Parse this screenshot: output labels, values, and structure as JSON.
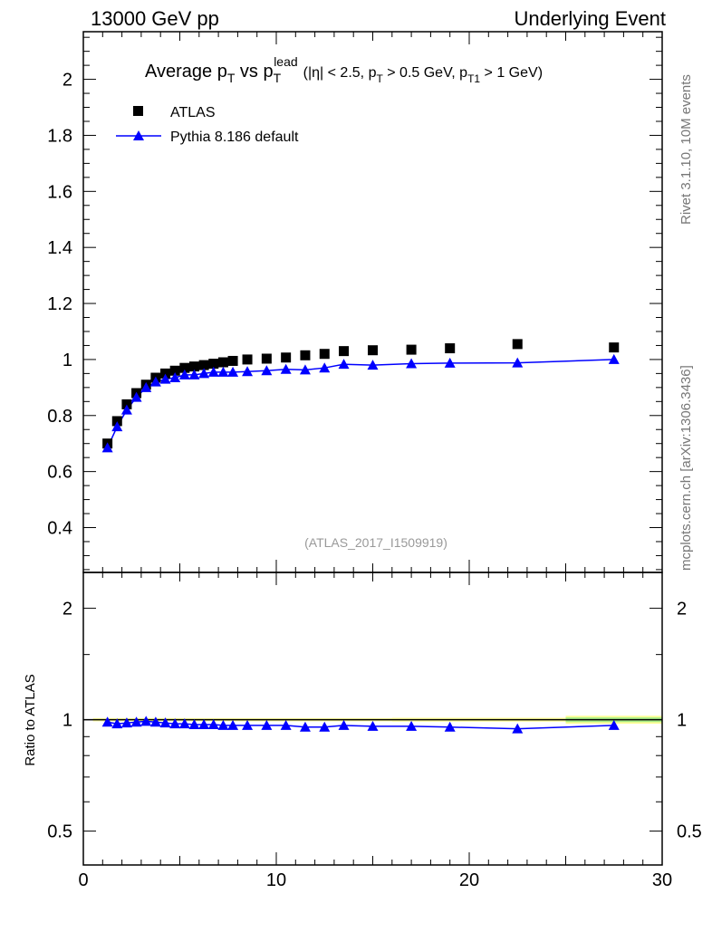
{
  "header": {
    "left": "13000 GeV pp",
    "right": "Underlying Event"
  },
  "side_labels": {
    "rivet": "Rivet 3.1.10,  10M events",
    "mcplots": "mcplots.cern.ch [arXiv:1306.3436]"
  },
  "title": {
    "p1": "Average p",
    "s1": "T",
    "p2": " vs p",
    "s2": "T",
    "sup2": "lead",
    "p3": "(|η| < 2.5, p",
    "s3": "T",
    "p4": " > 0.5 GeV, p",
    "s4": "T1",
    "p5": " > 1 GeV)"
  },
  "analysis_id": "(ATLAS_2017_I1509919)",
  "colors": {
    "data": "#000000",
    "mc": "#0000ff",
    "band_yellow": "#ffff99",
    "band_green": "#aaee88"
  },
  "chart_data": [
    {
      "type": "scatter",
      "title": "Average pT vs pT lead",
      "xlabel": "",
      "ylabel": "",
      "xlim": [
        0,
        30
      ],
      "ylim": [
        0.24,
        2.17
      ],
      "x_ticks": [
        0,
        10,
        20,
        30
      ],
      "y_ticks": [
        0.4,
        0.6,
        0.8,
        1,
        1.2,
        1.4,
        1.6,
        1.8,
        2
      ],
      "y_tick_labels": [
        "0.4",
        "0.6",
        "0.8",
        "1",
        "1.2",
        "1.4",
        "1.6",
        "1.8",
        "2"
      ],
      "legend": {
        "placement": "top-left",
        "entries": [
          "ATLAS",
          "Pythia 8.186 default"
        ]
      },
      "x": [
        1.25,
        1.75,
        2.25,
        2.75,
        3.25,
        3.75,
        4.25,
        4.75,
        5.25,
        5.75,
        6.25,
        6.75,
        7.25,
        7.75,
        8.5,
        9.5,
        10.5,
        11.5,
        12.5,
        13.5,
        15,
        17,
        19,
        22.5,
        27.5
      ],
      "series": [
        {
          "name": "ATLAS",
          "marker": "square",
          "values": [
            0.7,
            0.78,
            0.84,
            0.88,
            0.91,
            0.935,
            0.95,
            0.96,
            0.97,
            0.975,
            0.98,
            0.985,
            0.99,
            0.995,
            1.0,
            1.003,
            1.007,
            1.015,
            1.02,
            1.03,
            1.033,
            1.035,
            1.04,
            1.055,
            1.043
          ]
        },
        {
          "name": "Pythia 8.186 default",
          "marker": "triangle",
          "values": [
            0.685,
            0.76,
            0.82,
            0.865,
            0.9,
            0.92,
            0.93,
            0.935,
            0.945,
            0.945,
            0.95,
            0.955,
            0.955,
            0.955,
            0.957,
            0.96,
            0.965,
            0.963,
            0.97,
            0.983,
            0.98,
            0.985,
            0.987,
            0.988,
            1.0
          ]
        }
      ]
    },
    {
      "type": "line",
      "ylabel": "Ratio to ATLAS",
      "xlim": [
        0,
        30
      ],
      "ylim": [
        0.405,
        2.5
      ],
      "yscale": "log",
      "x_ticks": [
        0,
        10,
        20,
        30
      ],
      "x_tick_labels": [
        "0",
        "10",
        "20",
        "30"
      ],
      "y_ticks": [
        0.5,
        1,
        2
      ],
      "y_tick_labels": [
        "0.5",
        "1",
        "2"
      ],
      "x": [
        1.25,
        1.75,
        2.25,
        2.75,
        3.25,
        3.75,
        4.25,
        4.75,
        5.25,
        5.75,
        6.25,
        6.75,
        7.25,
        7.75,
        8.5,
        9.5,
        10.5,
        11.5,
        12.5,
        13.5,
        15,
        17,
        19,
        22.5,
        27.5
      ],
      "series": [
        {
          "name": "Pythia 8.186 default / ATLAS",
          "values": [
            0.985,
            0.975,
            0.98,
            0.985,
            0.99,
            0.985,
            0.98,
            0.975,
            0.975,
            0.97,
            0.97,
            0.97,
            0.965,
            0.965,
            0.965,
            0.965,
            0.965,
            0.955,
            0.955,
            0.965,
            0.96,
            0.96,
            0.955,
            0.945,
            0.965
          ]
        }
      ]
    }
  ]
}
